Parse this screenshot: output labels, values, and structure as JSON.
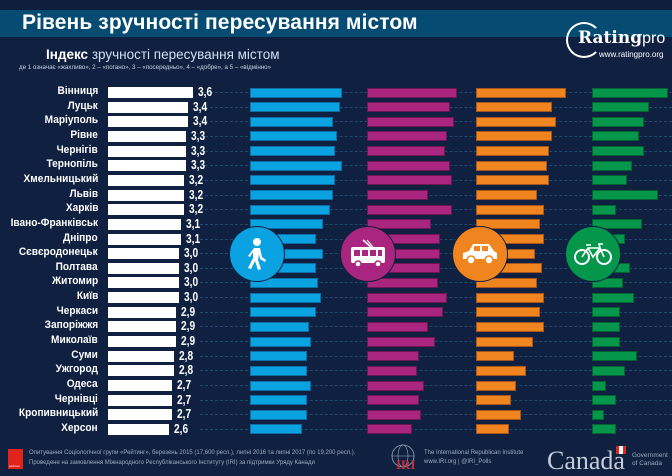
{
  "header": {
    "title": "Рівень зручності пересування містом",
    "subtitle_bold": "Індекс",
    "subtitle_rest": " зручності пересування містом",
    "note": "де 1 означає «жахливо», 2 – «погано», 3 – «посередньо», 4 – «добре», а 5 – «відмінно»",
    "logo_main": "Rating",
    "logo_pro": "pro",
    "logo_url": "www.ratingpro.org"
  },
  "colors": {
    "background": "#0f2040",
    "title_bar": "#064b72",
    "overall": "#ffffff",
    "walking": "#0aa2e0",
    "public_transport": "#a9257f",
    "car": "#f0841f",
    "bicycle": "#04964a"
  },
  "icons": {
    "walking": "pedestrian-icon",
    "public_transport": "trolleybus-icon",
    "car": "car-icon",
    "bicycle": "bicycle-icon"
  },
  "footer": {
    "rating_logo_text": "рейтинг",
    "line1": "Опитування Соціологічної групи «Рейтинг», березень 2015 (17,600 респ.), липні 2016 та липні 2017 (по 19,200 респ.).",
    "line2": "Проведене на замовлення Міжнародного Республіканського Інституту (IRI) за підтримки Уряду Канади",
    "iri_mark": "IRI",
    "iri_line1": "The International Republican Institute",
    "iri_line2": "www.IRI.org | @IRI_Polls",
    "canada": "Canada",
    "gov_line1": "Government",
    "gov_line2": "of Canada"
  },
  "chart_data": {
    "type": "bar",
    "title": "Індекс зручності пересування містом",
    "xlabel": "",
    "ylabel": "",
    "xlim": [
      0,
      5
    ],
    "categories": [
      "Вінниця",
      "Луцьк",
      "Маріуполь",
      "Рівне",
      "Чернігів",
      "Тернопіль",
      "Хмельницький",
      "Львів",
      "Харків",
      "Івано-Франківськ",
      "Дніпро",
      "Сєвєродонецьк",
      "Полтава",
      "Житомир",
      "Київ",
      "Черкаси",
      "Запоріжжя",
      "Миколаїв",
      "Суми",
      "Ужгород",
      "Одеса",
      "Чернівці",
      "Кропивницький",
      "Херсон"
    ],
    "series": [
      {
        "name": "Загальний індекс",
        "labels": [
          "3,6",
          "3,4",
          "3,4",
          "3,3",
          "3,3",
          "3,3",
          "3,2",
          "3,2",
          "3,2",
          "3,1",
          "3,1",
          "3,0",
          "3,0",
          "3,0",
          "3,0",
          "2,9",
          "2,9",
          "2,9",
          "2,8",
          "2,8",
          "2,7",
          "2,7",
          "2,7",
          "2,6"
        ],
        "values": [
          3.6,
          3.4,
          3.4,
          3.3,
          3.3,
          3.3,
          3.2,
          3.2,
          3.2,
          3.1,
          3.1,
          3.0,
          3.0,
          3.0,
          3.0,
          2.9,
          2.9,
          2.9,
          2.8,
          2.8,
          2.7,
          2.7,
          2.7,
          2.6
        ]
      },
      {
        "name": "Пішки",
        "values": [
          3.9,
          3.8,
          3.5,
          3.7,
          3.6,
          3.9,
          3.6,
          3.5,
          3.4,
          3.1,
          2.8,
          3.1,
          2.8,
          2.9,
          3.0,
          2.8,
          2.5,
          2.6,
          2.4,
          2.4,
          2.6,
          2.4,
          2.4,
          2.2
        ]
      },
      {
        "name": "Громадський транспорт",
        "values": [
          3.8,
          3.5,
          3.7,
          3.4,
          3.3,
          3.5,
          3.6,
          2.6,
          3.6,
          2.7,
          3.1,
          3.1,
          3.1,
          3.0,
          3.4,
          3.2,
          2.6,
          2.9,
          2.2,
          2.1,
          2.4,
          2.2,
          2.3,
          1.9
        ]
      },
      {
        "name": "Автомобіль",
        "values": [
          3.8,
          3.2,
          3.4,
          3.2,
          3.1,
          3.0,
          3.1,
          2.6,
          2.9,
          2.7,
          2.9,
          2.5,
          2.8,
          2.6,
          2.9,
          2.7,
          2.9,
          2.4,
          1.6,
          2.1,
          1.7,
          1.5,
          1.9,
          1.4
        ]
      },
      {
        "name": "Велосипед",
        "values": [
          3.2,
          2.4,
          2.2,
          2.0,
          2.2,
          1.7,
          1.5,
          2.8,
          1.0,
          2.1,
          1.4,
          1.2,
          1.6,
          1.3,
          1.8,
          1.2,
          1.2,
          1.2,
          1.9,
          1.4,
          0.6,
          1.0,
          0.5,
          1.0
        ]
      }
    ]
  }
}
